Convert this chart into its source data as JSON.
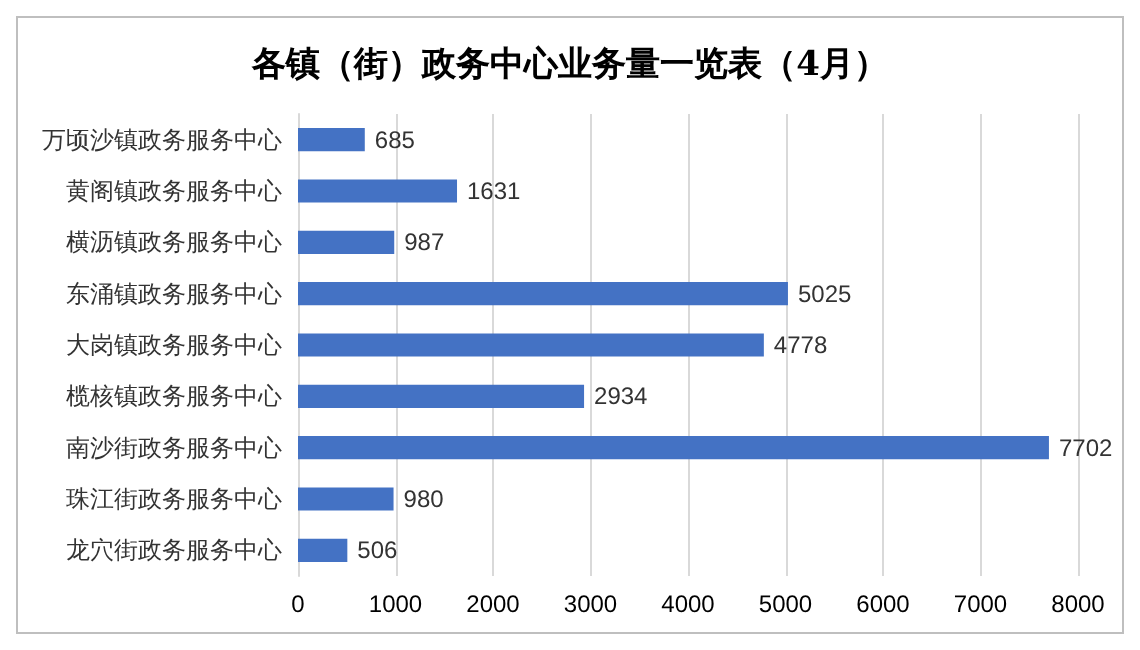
{
  "chart_data": {
    "type": "bar",
    "orientation": "horizontal",
    "title": "各镇（街）政务中心业务量一览表（4月）",
    "categories": [
      "万顷沙镇政务服务中心",
      "黄阁镇政务服务中心",
      "横沥镇政务服务中心",
      "东涌镇政务服务中心",
      "大岗镇政务服务中心",
      "榄核镇政务服务中心",
      "南沙街政务服务中心",
      "珠江街政务服务中心",
      "龙穴街政务服务中心"
    ],
    "values": [
      685,
      1631,
      987,
      5025,
      4778,
      2934,
      7702,
      980,
      506
    ],
    "color": "#4472c4",
    "xlim": [
      0,
      8000
    ],
    "xticks": [
      0,
      1000,
      2000,
      3000,
      4000,
      5000,
      6000,
      7000,
      8000
    ],
    "grid": "x",
    "data_labels": true
  }
}
